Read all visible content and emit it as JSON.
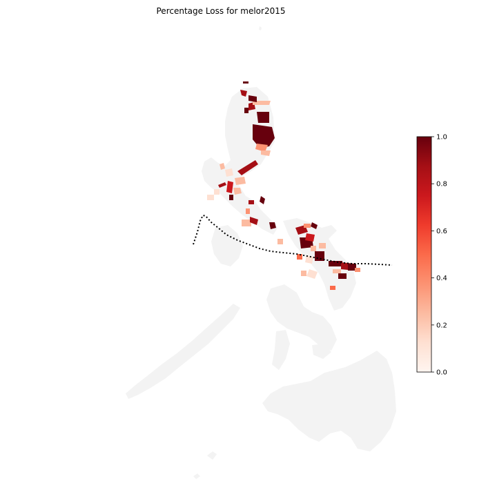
{
  "title": "Percentage Loss for melor2015",
  "colorbar": {
    "colormap": "Reds",
    "min": 0.0,
    "max": 1.0,
    "ticks": [
      "0.0",
      "0.2",
      "0.4",
      "0.6",
      "0.8",
      "1.0"
    ],
    "stops": [
      "#fff5f0",
      "#fee0d2",
      "#fcbba1",
      "#fc9272",
      "#fb6a4a",
      "#ef3b2c",
      "#cb181d",
      "#a50f15",
      "#67000d"
    ]
  },
  "colors": {
    "land": "#f2f2f2",
    "track": "#000000"
  },
  "legend_position": "right"
}
